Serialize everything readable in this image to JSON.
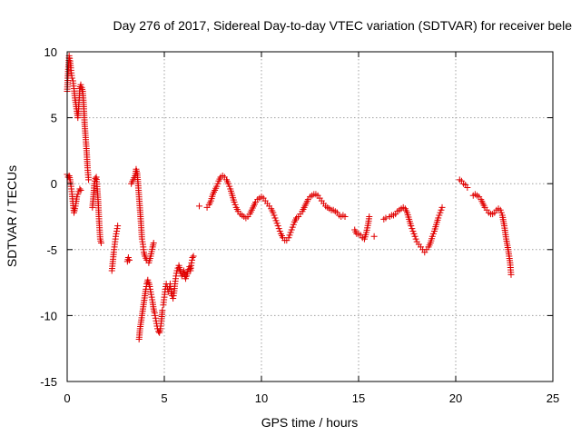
{
  "chart_data": {
    "type": "scatter",
    "title": "Day 276 of 2017, Sidereal Day-to-day VTEC variation (SDTVAR) for receiver bele",
    "xlabel": "GPS time / hours",
    "ylabel": "SDTVAR / TECUs",
    "xlim": [
      0,
      25
    ],
    "ylim": [
      -15,
      10
    ],
    "xticks": [
      0,
      5,
      10,
      15,
      20,
      25
    ],
    "yticks": [
      -15,
      -10,
      -5,
      0,
      5,
      10
    ],
    "xtick_labels": [
      "0",
      "5",
      "10",
      "15",
      "20",
      "25"
    ],
    "ytick_labels": [
      "-15",
      "-10",
      "-5",
      "0",
      "5",
      "10"
    ],
    "grid": true,
    "marker": "+",
    "marker_color": "#e00000",
    "series": [
      {
        "name": "SDTVAR",
        "segments": [
          [
            [
              0.0,
              7.0
            ],
            [
              0.05,
              8.5
            ],
            [
              0.1,
              9.7
            ],
            [
              0.15,
              9.3
            ],
            [
              0.2,
              8.6
            ],
            [
              0.25,
              8.0
            ],
            [
              0.3,
              7.8
            ],
            [
              0.35,
              7.2
            ],
            [
              0.4,
              6.5
            ],
            [
              0.45,
              6.0
            ],
            [
              0.5,
              5.5
            ],
            [
              0.55,
              5.0
            ],
            [
              0.6,
              6.0
            ],
            [
              0.65,
              7.2
            ],
            [
              0.7,
              7.5
            ],
            [
              0.75,
              7.3
            ],
            [
              0.8,
              7.0
            ],
            [
              0.85,
              6.0
            ],
            [
              0.9,
              4.5
            ],
            [
              0.95,
              3.5
            ],
            [
              1.0,
              2.5
            ],
            [
              1.05,
              1.2
            ],
            [
              1.1,
              0.3
            ]
          ],
          [
            [
              0.0,
              0.7
            ],
            [
              0.05,
              0.5
            ],
            [
              0.1,
              0.6
            ],
            [
              0.15,
              0.3
            ],
            [
              0.2,
              -0.2
            ],
            [
              0.25,
              -0.8
            ],
            [
              0.3,
              -1.5
            ],
            [
              0.35,
              -2.2
            ],
            [
              0.4,
              -1.9
            ],
            [
              0.45,
              -1.5
            ],
            [
              0.5,
              -1.0
            ],
            [
              0.55,
              -0.8
            ],
            [
              0.6,
              -0.6
            ],
            [
              0.65,
              -0.4
            ],
            [
              0.7,
              -0.5
            ]
          ],
          [
            [
              1.3,
              -1.8
            ],
            [
              1.35,
              -1.0
            ],
            [
              1.4,
              0.0
            ],
            [
              1.45,
              0.4
            ],
            [
              1.5,
              0.5
            ],
            [
              1.55,
              -0.4
            ],
            [
              1.6,
              -1.5
            ],
            [
              1.65,
              -3.0
            ],
            [
              1.7,
              -4.2
            ],
            [
              1.75,
              -4.5
            ]
          ],
          [
            [
              2.3,
              -6.6
            ],
            [
              2.35,
              -5.9
            ],
            [
              2.4,
              -5.2
            ],
            [
              2.45,
              -4.6
            ],
            [
              2.5,
              -4.0
            ],
            [
              2.55,
              -3.6
            ],
            [
              2.6,
              -3.2
            ]
          ],
          [
            [
              3.1,
              -5.9
            ],
            [
              3.15,
              -5.6
            ],
            [
              3.2,
              -5.8
            ]
          ],
          [
            [
              3.3,
              0.0
            ],
            [
              3.4,
              0.3
            ],
            [
              3.5,
              0.6
            ],
            [
              3.55,
              1.1
            ],
            [
              3.6,
              0.8
            ],
            [
              3.65,
              0.0
            ],
            [
              3.7,
              -1.0
            ],
            [
              3.75,
              -2.0
            ],
            [
              3.8,
              -3.0
            ],
            [
              3.85,
              -4.2
            ],
            [
              3.9,
              -4.6
            ],
            [
              3.95,
              -5.2
            ],
            [
              4.0,
              -5.5
            ],
            [
              4.1,
              -5.8
            ],
            [
              4.2,
              -6.0
            ],
            [
              4.3,
              -5.5
            ],
            [
              4.4,
              -4.8
            ],
            [
              4.45,
              -4.5
            ]
          ],
          [
            [
              3.7,
              -11.8
            ],
            [
              3.75,
              -11.0
            ],
            [
              3.8,
              -10.5
            ],
            [
              3.85,
              -10.0
            ],
            [
              3.9,
              -9.5
            ],
            [
              3.95,
              -9.0
            ],
            [
              4.0,
              -8.5
            ],
            [
              4.05,
              -8.0
            ],
            [
              4.1,
              -7.6
            ],
            [
              4.15,
              -7.3
            ],
            [
              4.2,
              -7.5
            ],
            [
              4.25,
              -7.8
            ],
            [
              4.3,
              -8.2
            ],
            [
              4.35,
              -8.6
            ],
            [
              4.4,
              -9.0
            ],
            [
              4.45,
              -9.5
            ],
            [
              4.5,
              -9.8
            ],
            [
              4.55,
              -10.2
            ],
            [
              4.6,
              -10.6
            ],
            [
              4.65,
              -11.0
            ],
            [
              4.7,
              -11.2
            ],
            [
              4.75,
              -11.3
            ],
            [
              4.8,
              -11.0
            ],
            [
              4.85,
              -10.4
            ],
            [
              4.9,
              -9.6
            ]
          ],
          [
            [
              4.95,
              -9.2
            ],
            [
              5.0,
              -8.6
            ],
            [
              5.05,
              -8.0
            ],
            [
              5.1,
              -7.6
            ],
            [
              5.15,
              -7.8
            ],
            [
              5.2,
              -8.2
            ],
            [
              5.25,
              -8.0
            ],
            [
              5.3,
              -7.6
            ],
            [
              5.35,
              -8.2
            ],
            [
              5.4,
              -8.5
            ],
            [
              5.45,
              -8.7
            ],
            [
              5.5,
              -8.3
            ],
            [
              5.55,
              -7.6
            ],
            [
              5.6,
              -7.0
            ],
            [
              5.65,
              -6.6
            ],
            [
              5.7,
              -6.4
            ],
            [
              5.75,
              -6.2
            ],
            [
              5.8,
              -6.5
            ],
            [
              5.85,
              -6.8
            ],
            [
              5.9,
              -7.0
            ],
            [
              5.95,
              -6.8
            ],
            [
              6.0,
              -6.6
            ],
            [
              6.05,
              -6.9
            ],
            [
              6.1,
              -7.2
            ],
            [
              6.15,
              -7.0
            ],
            [
              6.2,
              -6.7
            ],
            [
              6.25,
              -6.5
            ],
            [
              6.3,
              -6.3
            ],
            [
              6.35,
              -6.6
            ],
            [
              6.4,
              -6.0
            ],
            [
              6.45,
              -5.6
            ],
            [
              6.5,
              -5.5
            ]
          ],
          [
            [
              6.8,
              -1.7
            ]
          ],
          [
            [
              7.2,
              -1.8
            ],
            [
              7.3,
              -1.6
            ],
            [
              7.4,
              -1.3
            ],
            [
              7.5,
              -0.8
            ],
            [
              7.6,
              -0.5
            ],
            [
              7.7,
              -0.2
            ],
            [
              7.8,
              0.2
            ],
            [
              7.9,
              0.5
            ],
            [
              8.0,
              0.6
            ],
            [
              8.1,
              0.5
            ],
            [
              8.2,
              0.3
            ],
            [
              8.3,
              0.0
            ],
            [
              8.4,
              -0.4
            ],
            [
              8.5,
              -0.9
            ],
            [
              8.6,
              -1.4
            ],
            [
              8.7,
              -1.8
            ],
            [
              8.8,
              -2.1
            ],
            [
              8.9,
              -2.3
            ],
            [
              9.0,
              -2.4
            ],
            [
              9.1,
              -2.5
            ],
            [
              9.2,
              -2.6
            ],
            [
              9.3,
              -2.5
            ],
            [
              9.4,
              -2.3
            ],
            [
              9.5,
              -2.0
            ],
            [
              9.6,
              -1.7
            ],
            [
              9.7,
              -1.4
            ],
            [
              9.8,
              -1.2
            ],
            [
              9.9,
              -1.1
            ],
            [
              10.0,
              -1.0
            ],
            [
              10.1,
              -1.1
            ],
            [
              10.2,
              -1.3
            ],
            [
              10.3,
              -1.5
            ],
            [
              10.4,
              -1.7
            ],
            [
              10.5,
              -1.9
            ],
            [
              10.6,
              -2.2
            ],
            [
              10.7,
              -2.6
            ],
            [
              10.8,
              -3.0
            ],
            [
              10.9,
              -3.4
            ],
            [
              11.0,
              -3.8
            ],
            [
              11.1,
              -4.1
            ],
            [
              11.2,
              -4.3
            ],
            [
              11.3,
              -4.3
            ],
            [
              11.4,
              -4.1
            ],
            [
              11.5,
              -3.7
            ],
            [
              11.6,
              -3.3
            ],
            [
              11.7,
              -2.9
            ],
            [
              11.8,
              -2.6
            ],
            [
              11.9,
              -2.5
            ],
            [
              12.0,
              -2.3
            ],
            [
              12.1,
              -2.1
            ],
            [
              12.2,
              -1.8
            ],
            [
              12.3,
              -1.5
            ],
            [
              12.4,
              -1.2
            ],
            [
              12.5,
              -1.0
            ],
            [
              12.6,
              -0.9
            ],
            [
              12.7,
              -0.8
            ],
            [
              12.8,
              -0.8
            ],
            [
              12.9,
              -0.9
            ],
            [
              13.0,
              -1.1
            ],
            [
              13.1,
              -1.3
            ],
            [
              13.2,
              -1.5
            ],
            [
              13.3,
              -1.7
            ],
            [
              13.4,
              -1.8
            ],
            [
              13.5,
              -1.9
            ],
            [
              13.6,
              -2.0
            ],
            [
              13.7,
              -2.0
            ],
            [
              13.8,
              -2.1
            ],
            [
              13.9,
              -2.2
            ],
            [
              14.0,
              -2.4
            ],
            [
              14.1,
              -2.5
            ],
            [
              14.2,
              -2.4
            ],
            [
              14.3,
              -2.5
            ]
          ],
          [
            [
              14.8,
              -3.5
            ],
            [
              14.9,
              -3.8
            ],
            [
              15.0,
              -3.8
            ],
            [
              15.1,
              -3.9
            ],
            [
              15.2,
              -4.1
            ],
            [
              15.3,
              -4.2
            ],
            [
              15.4,
              -3.7
            ],
            [
              15.5,
              -3.0
            ],
            [
              15.55,
              -2.5
            ]
          ],
          [
            [
              15.8,
              -4.0
            ]
          ],
          [
            [
              16.3,
              -2.7
            ],
            [
              16.4,
              -2.6
            ]
          ],
          [
            [
              16.6,
              -2.5
            ],
            [
              16.7,
              -2.4
            ],
            [
              16.8,
              -2.4
            ],
            [
              16.9,
              -2.3
            ],
            [
              17.0,
              -2.1
            ],
            [
              17.1,
              -2.0
            ],
            [
              17.2,
              -1.9
            ],
            [
              17.3,
              -1.8
            ],
            [
              17.4,
              -1.9
            ],
            [
              17.5,
              -2.2
            ],
            [
              17.6,
              -2.7
            ],
            [
              17.7,
              -3.2
            ],
            [
              17.8,
              -3.6
            ],
            [
              17.9,
              -4.0
            ],
            [
              18.0,
              -4.4
            ],
            [
              18.1,
              -4.6
            ],
            [
              18.2,
              -4.8
            ],
            [
              18.3,
              -5.0
            ],
            [
              18.4,
              -5.2
            ],
            [
              18.5,
              -5.0
            ],
            [
              18.6,
              -4.8
            ],
            [
              18.7,
              -4.5
            ],
            [
              18.8,
              -4.0
            ],
            [
              18.9,
              -3.6
            ],
            [
              19.0,
              -3.1
            ],
            [
              19.1,
              -2.6
            ],
            [
              19.2,
              -2.2
            ],
            [
              19.3,
              -1.8
            ]
          ],
          [
            [
              20.2,
              0.3
            ],
            [
              20.3,
              0.2
            ],
            [
              20.4,
              0.0
            ],
            [
              20.5,
              -0.1
            ],
            [
              20.6,
              -0.3
            ]
          ],
          [
            [
              20.9,
              -0.9
            ],
            [
              21.0,
              -0.8
            ],
            [
              21.1,
              -0.9
            ],
            [
              21.2,
              -1.0
            ],
            [
              21.3,
              -1.2
            ],
            [
              21.4,
              -1.5
            ],
            [
              21.5,
              -1.8
            ],
            [
              21.6,
              -2.0
            ],
            [
              21.7,
              -2.2
            ],
            [
              21.8,
              -2.3
            ],
            [
              21.9,
              -2.3
            ],
            [
              22.0,
              -2.2
            ],
            [
              22.1,
              -2.0
            ],
            [
              22.2,
              -1.9
            ],
            [
              22.3,
              -2.0
            ],
            [
              22.4,
              -2.4
            ],
            [
              22.5,
              -3.2
            ],
            [
              22.6,
              -4.2
            ],
            [
              22.7,
              -5.0
            ],
            [
              22.8,
              -6.0
            ],
            [
              22.85,
              -6.9
            ]
          ]
        ]
      }
    ]
  }
}
